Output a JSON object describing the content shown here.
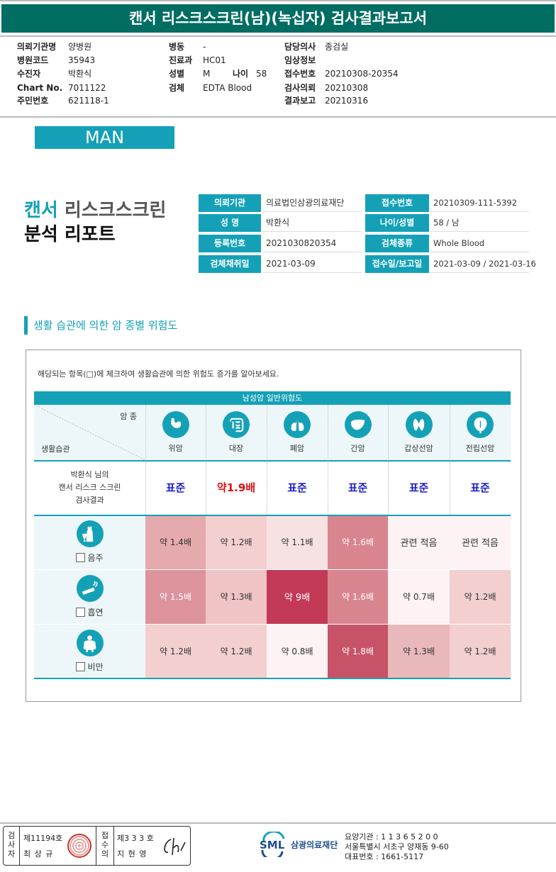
{
  "title": "캔서 리스크스크린(남)(녹십자) 검사결과보고서",
  "header": {
    "col1": [
      {
        "label": "의뢰기관명",
        "value": "양병원"
      },
      {
        "label": "병원코드",
        "value": "35943"
      },
      {
        "label": "수진자",
        "value": "박환식"
      },
      {
        "label": "Chart No.",
        "value": "7011122"
      },
      {
        "label": "주민번호",
        "value": "621118-1"
      }
    ],
    "col2": [
      {
        "label": "병동",
        "value": "-"
      },
      {
        "label": "진료과",
        "value": "HC01"
      },
      {
        "label": "성별",
        "value": "M"
      },
      {
        "label": "검체",
        "value": "EDTA Blood"
      }
    ],
    "age_label": "나이",
    "age_value": "58",
    "col3": [
      {
        "label": "담당의사",
        "value": "종검실"
      },
      {
        "label": "임상정보",
        "value": ""
      },
      {
        "label": "접수번호",
        "value": "20210308-20354"
      },
      {
        "label": "검사의뢰",
        "value": "20210308"
      },
      {
        "label": "결과보고",
        "value": "20210316"
      }
    ]
  },
  "badge": "MAN",
  "report_title": {
    "line1a": "캔서",
    "line1b": "리스크스크린",
    "line2": "분석 리포트"
  },
  "info": {
    "rows": [
      {
        "k1": "의뢰기관",
        "v1": "의료법인삼광의료재단",
        "k2": "접수번호",
        "v2": "20210309-111-5392"
      },
      {
        "k1": "성 명",
        "v1": "박환식",
        "k2": "나이/성별",
        "v2": "58    /    남"
      },
      {
        "k1": "등록번호",
        "v1": "2021030820354",
        "k2": "검체종류",
        "v2": "Whole Blood"
      },
      {
        "k1": "검체채취일",
        "v1": "2021-03-09",
        "k2": "접수일/보고일",
        "v2": "2021-03-09 / 2021-03-16"
      }
    ]
  },
  "section_title": "생활 습관에 의한 암 종별 위험도",
  "instruction": "해당되는 항목(□)에 체크하여 생활습관에 의한 위험도 증가를 알아보세요.",
  "table": {
    "head": "남성암 일반위험도",
    "corner_top": "암 종",
    "corner_bottom": "생활습관",
    "cancers": [
      {
        "name": "위암",
        "icon": "stomach-icon"
      },
      {
        "name": "대장",
        "icon": "colon-icon"
      },
      {
        "name": "폐암",
        "icon": "lungs-icon"
      },
      {
        "name": "간암",
        "icon": "liver-icon"
      },
      {
        "name": "갑상선암",
        "icon": "thyroid-icon"
      },
      {
        "name": "전립선암",
        "icon": "prostate-icon"
      }
    ],
    "result_label": [
      "박환식 님의",
      "캔서 리스크 스크린",
      "검사결과"
    ],
    "results": [
      "표준",
      "약1.9배",
      "표준",
      "표준",
      "표준",
      "표준"
    ],
    "habits": [
      {
        "name": "음주",
        "icon": "drinking-icon",
        "values": [
          "약 1.4배",
          "약 1.2배",
          "약 1.1배",
          "약 1.6배",
          "관련 적음",
          "관련 적음"
        ],
        "colors": [
          "#e5aaad",
          "#f3cfd0",
          "#f7e2e3",
          "#d98590",
          "#fdf3f4",
          "#fdf3f4"
        ]
      },
      {
        "name": "흡연",
        "icon": "smoking-icon",
        "values": [
          "약 1.5배",
          "약 1.3배",
          "약 9배",
          "약 1.6배",
          "약 0.7배",
          "약 1.2배"
        ],
        "colors": [
          "#dc939b",
          "#f0c3c5",
          "#c23a58",
          "#d98590",
          "#fdf3f4",
          "#f3cfd0"
        ]
      },
      {
        "name": "비만",
        "icon": "obesity-icon",
        "values": [
          "약 1.2배",
          "약 1.2배",
          "약 0.8배",
          "약 1.8배",
          "약 1.3배",
          "약 1.2배"
        ],
        "colors": [
          "#f3cfd0",
          "#f3cfd0",
          "#fdf3f4",
          "#c75369",
          "#e9b8bb",
          "#f3cfd0"
        ]
      }
    ]
  },
  "sign": {
    "label1": "검사자",
    "no1": "제11194호",
    "name1": "최 상 규",
    "label2": "접수의",
    "no2": "제3 3 3 호",
    "name2": "지 현 영"
  },
  "footer": {
    "logo": "SML",
    "foundation": "삼광의료재단",
    "lines": [
      "요양기관 : 1 1 3 6 5 2 0 0",
      "서울특별시 서초구 양재동 9-60",
      "대표번호 : 1661-5117"
    ]
  },
  "colors": {
    "accent": "#14a1b7",
    "title_bg": "#006d63"
  }
}
